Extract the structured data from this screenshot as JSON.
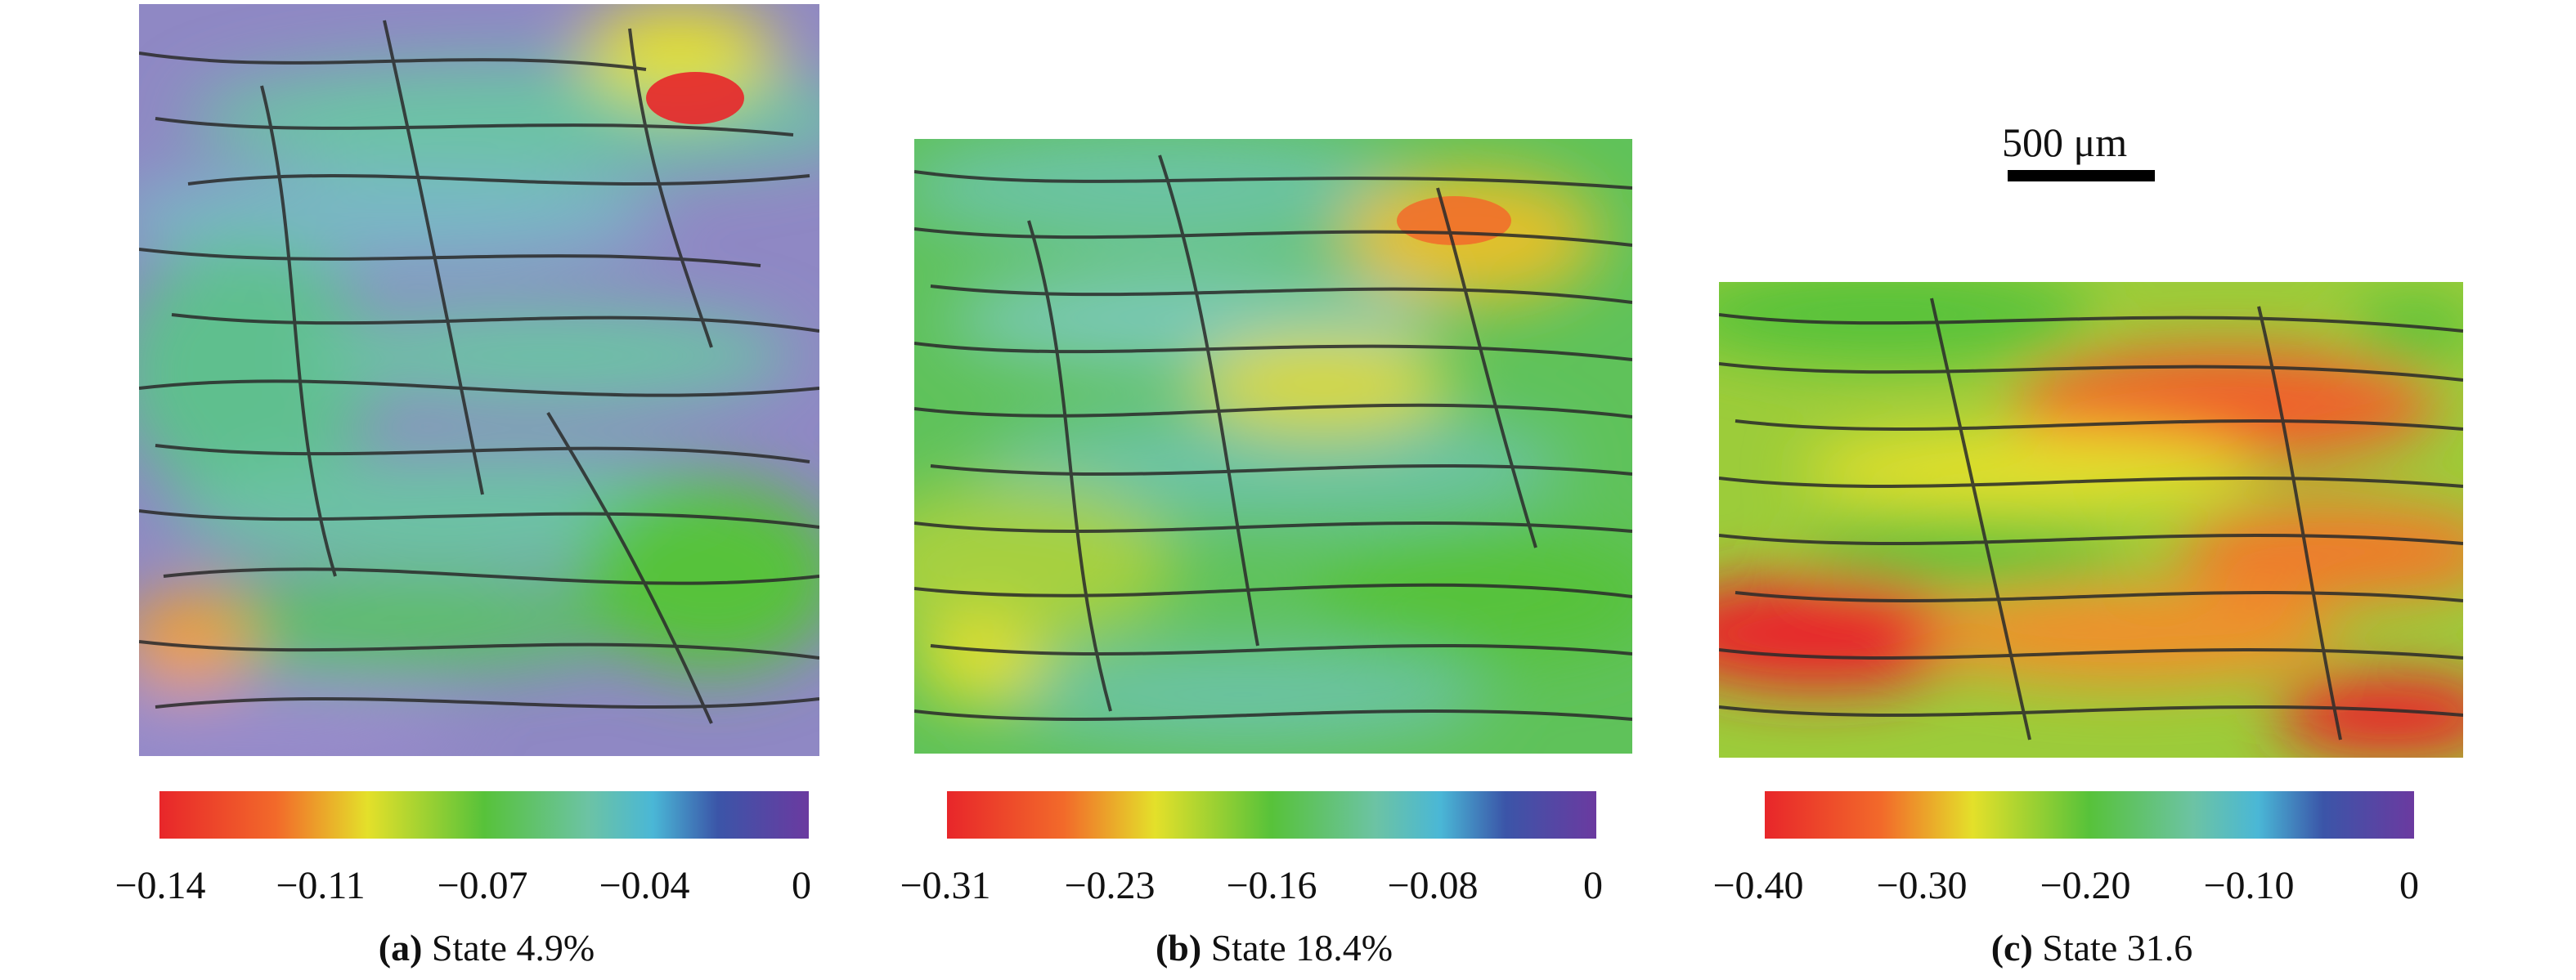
{
  "colors": {
    "red": "#e8262a",
    "orange": "#f26a2a",
    "yellow": "#e4e02a",
    "green": "#57c23a",
    "teal": "#6cc3a4",
    "cyan": "#4ab7d6",
    "blue": "#3b55a8",
    "purple": "#6b3aa0",
    "fiber": "#2a2a2a"
  },
  "scalebar": {
    "label": "500 μm"
  },
  "panels": [
    {
      "id": "a",
      "letter": "(a)",
      "caption": " State 4.9%",
      "ticks": [
        "−0.14",
        "−0.11",
        "−0.07",
        "−0.04",
        "0"
      ],
      "dominant": "purple-cyan"
    },
    {
      "id": "b",
      "letter": "(b)",
      "caption": " State 18.4%",
      "ticks": [
        "−0.31",
        "−0.23",
        "−0.16",
        "−0.08",
        "0"
      ],
      "dominant": "green"
    },
    {
      "id": "c",
      "letter": "(c)",
      "caption": " State 31.6",
      "ticks": [
        "−0.40",
        "−0.30",
        "−0.20",
        "−0.10",
        "0"
      ],
      "dominant": "orange-red"
    }
  ]
}
